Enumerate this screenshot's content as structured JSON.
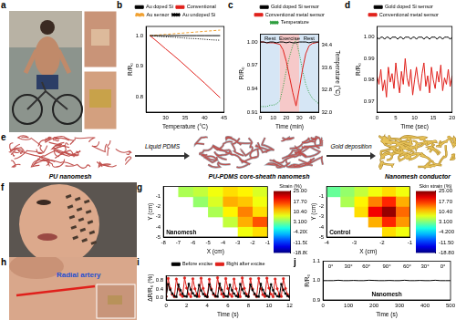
{
  "chart_data": [
    {
      "panel": "b",
      "type": "line",
      "x_label": "Temperature (°C)",
      "y_label": "R/R₀",
      "x": [
        26,
        28,
        30,
        32,
        34,
        36,
        38,
        40,
        42,
        44
      ],
      "xlim": [
        25,
        45
      ],
      "xticks": [
        30,
        35,
        40,
        45
      ],
      "ylim": [
        0.75,
        1.03
      ],
      "yticks": [
        0.8,
        0.9,
        {
          "value": 1,
          "label": "1.0"
        }
      ],
      "grid": false,
      "legend": "top",
      "series": [
        {
          "name": "Au doped Si",
          "color": "#000000",
          "line_style": "solid",
          "marker": "none",
          "values": [
            1,
            1,
            1,
            1,
            1,
            1,
            1,
            1,
            1,
            1
          ]
        },
        {
          "name": "Conventional",
          "color": "#e0201b",
          "line_style": "solid",
          "marker": "none",
          "values": [
            1,
            0.979,
            0.957,
            0.936,
            0.914,
            0.891,
            0.868,
            0.845,
            0.821,
            0.797
          ]
        },
        {
          "name": "Au sensor",
          "color": "#f0a030",
          "line_style": "dashed",
          "marker": "none",
          "values": [
            1,
            1.002,
            1.004,
            1.006,
            1.008,
            1.01,
            1.012,
            1.014,
            1.016,
            1.018
          ]
        },
        {
          "name": "Au undoped Si",
          "color": "#000000",
          "line_style": "dotted",
          "marker": "none",
          "values": [
            1,
            0.998,
            0.996,
            0.995,
            0.993,
            0.991,
            0.99,
            0.988,
            0.986,
            0.985
          ]
        }
      ]
    },
    {
      "panel": "c",
      "type": "line",
      "x_label": "Time (min)",
      "y_label": "R/R₀",
      "y2_label": "Temperature (°C)",
      "x": [
        0,
        2.5,
        5,
        7.5,
        10,
        12.5,
        15,
        17.5,
        20,
        22.5,
        25,
        27.5,
        30,
        32.5,
        35,
        37.5,
        40,
        42.5,
        45
      ],
      "xlim": [
        0,
        45
      ],
      "xticks": [
        0,
        10,
        20,
        30,
        40
      ],
      "ylim": [
        0.91,
        1.01
      ],
      "yticks": [
        0.91,
        0.94,
        0.97,
        {
          "value": 1,
          "label": "1.00"
        }
      ],
      "y2lim": [
        32,
        34.8
      ],
      "y2ticks": [
        {
          "value": 32,
          "label": "32.0"
        },
        32.8,
        33.6,
        34.4
      ],
      "grid": false,
      "legend": "top",
      "regions": [
        {
          "label": "Rest",
          "from": 0,
          "to": 15,
          "color": "#d6e6f5"
        },
        {
          "label": "Exercise",
          "from": 15,
          "to": 30,
          "color": "#f6c9c9"
        },
        {
          "label": "Rest",
          "from": 30,
          "to": 45,
          "color": "#d6e6f5"
        }
      ],
      "series": [
        {
          "name": "Gold doped Si sensor",
          "color": "#000000",
          "line_style": "solid",
          "marker": "none",
          "values": [
            1,
            1,
            0.999,
            1,
            1,
            0.999,
            1,
            1,
            0.999,
            1,
            0.999,
            0.999,
            1,
            1,
            1,
            0.999,
            1,
            1,
            1
          ]
        },
        {
          "name": "Conventional metal sensor",
          "color": "#e0201b",
          "line_style": "solid",
          "marker": "none",
          "values": [
            1,
            1,
            0.999,
            0.999,
            0.999,
            0.998,
            0.997,
            0.99,
            0.975,
            0.955,
            0.935,
            0.918,
            0.94,
            0.965,
            0.985,
            0.995,
            0.998,
            0.999,
            1
          ]
        },
        {
          "name": "Temperature",
          "color": "#2e9e3e",
          "line_style": "dotted",
          "marker": "none",
          "axis": "y2",
          "values": [
            32.2,
            32.2,
            32.2,
            32.25,
            32.25,
            32.3,
            32.4,
            32.9,
            33.5,
            34,
            34.4,
            34.6,
            34.1,
            33.5,
            33,
            32.7,
            32.5,
            32.4,
            32.3
          ]
        }
      ]
    },
    {
      "panel": "d",
      "type": "line",
      "x_label": "Time (sec)",
      "y_label": "R/R₀",
      "x": [
        0,
        0.5,
        1,
        1.5,
        2,
        2.5,
        3,
        3.5,
        4,
        4.5,
        5,
        5.5,
        6,
        6.5,
        7,
        7.5,
        8,
        8.5,
        9,
        9.5,
        10,
        10.5,
        11,
        11.5,
        12,
        12.5,
        13,
        13.5,
        14,
        14.5,
        15,
        15.5,
        16,
        16.5,
        17,
        17.5,
        18,
        18.5,
        19,
        19.5,
        20
      ],
      "xlim": [
        0,
        20
      ],
      "xticks": [
        0,
        5,
        10,
        15,
        20
      ],
      "ylim": [
        0.965,
        1.005
      ],
      "yticks": [
        0.97,
        0.98,
        0.99,
        {
          "value": 1,
          "label": "1.00"
        }
      ],
      "grid": false,
      "legend": "top",
      "series": [
        {
          "name": "Gold doped Si sensor",
          "color": "#000000",
          "line_style": "solid",
          "marker": "none",
          "values": [
            1,
            0.999,
            1,
            1,
            0.999,
            1,
            1,
            0.999,
            1,
            1,
            1,
            0.999,
            1,
            1,
            0.999,
            1,
            1,
            1,
            0.999,
            1,
            1,
            0.999,
            1,
            1,
            1,
            0.999,
            1,
            1,
            0.999,
            1,
            1,
            1,
            0.999,
            1,
            1,
            0.999,
            1,
            1,
            1,
            0.999,
            1
          ]
        },
        {
          "name": "Conventional metal sensor",
          "color": "#e0201b",
          "line_style": "solid",
          "marker": "none",
          "values": [
            0.982,
            0.978,
            0.985,
            0.975,
            0.98,
            0.972,
            0.986,
            0.979,
            0.983,
            0.976,
            0.988,
            0.98,
            0.974,
            0.984,
            0.978,
            0.99,
            0.981,
            0.977,
            0.985,
            0.973,
            0.98,
            0.986,
            0.979,
            0.975,
            0.983,
            0.988,
            0.977,
            0.982,
            0.974,
            0.986,
            0.98,
            0.976,
            0.984,
            0.979,
            0.987,
            0.975,
            0.981,
            0.978,
            0.985,
            0.977,
            0.982
          ]
        }
      ]
    },
    {
      "panel": "g",
      "type": "heatmap",
      "maps": [
        {
          "label": "Nanomesh",
          "x_label": "X (cm)",
          "y_label": "Y (cm)",
          "x": [
            -7.5,
            -6.5,
            -5.5,
            -4.5,
            -3.5,
            -2.5,
            -1.5
          ],
          "y": [
            -0.5,
            -1.5,
            -2.5,
            -3.5,
            -4.5
          ],
          "xlim": [
            -8,
            -1
          ],
          "xticks": [
            -8,
            -7,
            -6,
            -5,
            -4,
            -3,
            -2,
            -1
          ],
          "ylim": [
            -5,
            0
          ],
          "yticks": [
            -5,
            -4,
            -3,
            -2,
            -1
          ],
          "cells": [
            [
              null,
              5,
              6,
              8,
              10,
              9,
              7
            ],
            [
              null,
              null,
              4,
              7,
              12,
              11,
              8
            ],
            [
              null,
              null,
              null,
              5,
              9,
              14,
              10
            ],
            [
              null,
              null,
              null,
              null,
              6,
              12,
              16
            ],
            [
              null,
              null,
              null,
              null,
              null,
              8,
              10
            ]
          ],
          "colorbar": {
            "label": "Strain (%)",
            "range": [
              -18.8,
              25
            ],
            "ticks": [
              {
                "value": 25,
                "label": "25.00"
              },
              {
                "value": 17.7,
                "label": "17.70"
              },
              {
                "value": 10.4,
                "label": "10.40"
              },
              {
                "value": 3.1,
                "label": "3.100"
              },
              {
                "value": -4.2,
                "label": "-4.200"
              },
              {
                "value": -11.5,
                "label": "-11.50"
              },
              {
                "value": -18.8,
                "label": "-18.80"
              }
            ]
          }
        },
        {
          "label": "Control",
          "x_label": "X (cm)",
          "y_label": "Y (cm)",
          "x": [
            -3.75,
            -3.25,
            -2.75,
            -2.25,
            -1.75,
            -1.25
          ],
          "y": [
            -0.5,
            -1.5,
            -2.5,
            -3.5,
            -4.5
          ],
          "xlim": [
            -4,
            -1
          ],
          "xticks": [
            -4,
            -3,
            -2,
            -1
          ],
          "ylim": [
            -5,
            0
          ],
          "yticks": [
            -5,
            -4,
            -3,
            -2,
            -1
          ],
          "cells": [
            [
              2,
              4,
              6,
              8,
              10,
              8
            ],
            [
              null,
              5,
              9,
              14,
              18,
              12
            ],
            [
              null,
              null,
              10,
              20,
              24,
              15
            ],
            [
              null,
              null,
              null,
              12,
              18,
              13
            ],
            [
              null,
              null,
              null,
              null,
              10,
              8
            ]
          ],
          "colorbar": {
            "label": "Skin strain (%)",
            "range": [
              -18.8,
              25
            ],
            "ticks": [
              {
                "value": 25,
                "label": "25.00"
              },
              {
                "value": 17.7,
                "label": "17.70"
              },
              {
                "value": 10.4,
                "label": "10.40"
              },
              {
                "value": 3.1,
                "label": "3.100"
              },
              {
                "value": -4.2,
                "label": "-4.200"
              },
              {
                "value": -11.5,
                "label": "-11.50"
              },
              {
                "value": -18.8,
                "label": "-18.80"
              }
            ]
          }
        }
      ]
    },
    {
      "panel": "i",
      "type": "line",
      "x_label": "Time (s)",
      "y_label": "ΔR/R₀ (%)",
      "x": [
        0,
        0.2,
        0.4,
        0.6,
        0.8,
        1,
        1.2,
        1.4,
        1.6,
        1.8,
        2,
        2.2,
        2.4,
        2.6,
        2.8,
        3,
        3.2,
        3.4,
        3.6,
        3.8,
        4,
        4.2,
        4.4,
        4.6,
        4.8,
        5,
        5.2,
        5.4,
        5.6,
        5.8,
        6,
        6.2,
        6.4,
        6.6,
        6.8,
        7,
        7.2,
        7.4,
        7.6,
        7.8,
        8,
        8.2,
        8.4,
        8.6,
        8.8,
        9,
        9.2,
        9.4,
        9.6,
        9.8,
        10,
        10.2,
        10.4,
        10.6,
        10.8,
        11,
        11.2,
        11.4,
        11.6,
        11.8,
        12
      ],
      "xlim": [
        0,
        12
      ],
      "xticks": [
        0,
        2,
        4,
        6,
        8,
        10,
        12
      ],
      "ylim": [
        -0.1,
        1
      ],
      "yticks": [
        {
          "value": 0,
          "label": "0.0"
        },
        0.4,
        0.8
      ],
      "grid": false,
      "legend": "top",
      "series": [
        {
          "name": "Before excise",
          "color": "#000000",
          "line_style": "solid",
          "marker": "square",
          "values": [
            0.05,
            0.62,
            0.36,
            0.19,
            0.08,
            0.04,
            0.6,
            0.34,
            0.18,
            0.07,
            0.05,
            0.63,
            0.37,
            0.2,
            0.09,
            0.05,
            0.58,
            0.33,
            0.17,
            0.07,
            0.04,
            0.61,
            0.35,
            0.19,
            0.08,
            0.05,
            0.64,
            0.36,
            0.18,
            0.07,
            0.05,
            0.59,
            0.34,
            0.19,
            0.08,
            0.04,
            0.62,
            0.37,
            0.2,
            0.08,
            0.05,
            0.6,
            0.35,
            0.18,
            0.07,
            0.05,
            0.63,
            0.36,
            0.19,
            0.08,
            0.04,
            0.61,
            0.34,
            0.18,
            0.07,
            0.05,
            0.62,
            0.35,
            0.19,
            0.08,
            0.05
          ]
        },
        {
          "name": "Right after excise",
          "color": "#e0201b",
          "line_style": "solid",
          "marker": "circle",
          "values": [
            0.06,
            0.88,
            0.42,
            0.15,
            0.05,
            0.85,
            0.4,
            0.14,
            0.06,
            0.9,
            0.44,
            0.16,
            0.05,
            0.86,
            0.41,
            0.15,
            0.06,
            0.89,
            0.43,
            0.14,
            0.05,
            0.84,
            0.4,
            0.15,
            0.06,
            0.91,
            0.44,
            0.16,
            0.05,
            0.87,
            0.42,
            0.15,
            0.06,
            0.85,
            0.41,
            0.14,
            0.05,
            0.9,
            0.43,
            0.16,
            0.06,
            0.86,
            0.4,
            0.15,
            0.05,
            0.88,
            0.42,
            0.14,
            0.06,
            0.89,
            0.44,
            0.16,
            0.05,
            0.85,
            0.41,
            0.15,
            0.06,
            0.87,
            0.42,
            0.15,
            0.05
          ]
        }
      ]
    },
    {
      "panel": "j",
      "type": "line",
      "x_label": "Time (s)",
      "y_label": "R/R₀",
      "x": [
        0,
        20,
        40,
        60,
        80,
        100,
        120,
        140,
        160,
        180,
        200,
        220,
        240,
        260,
        280,
        300,
        320,
        340,
        360,
        380,
        400,
        420,
        440,
        460,
        480,
        500
      ],
      "xlim": [
        0,
        500
      ],
      "xticks": [
        0,
        100,
        200,
        300,
        400,
        500
      ],
      "ylim": [
        0.9,
        1.1
      ],
      "yticks": [
        0.9,
        {
          "value": 1,
          "label": "1.0"
        },
        1.1
      ],
      "grid": false,
      "color": "#000000",
      "line_style": "solid",
      "marker": "none",
      "values": [
        1,
        1,
        1,
        1.002,
        1,
        1,
        1.001,
        1,
        1,
        1.002,
        1.001,
        1,
        1,
        1.001,
        1,
        1,
        1.002,
        1,
        1,
        1.001,
        1,
        1,
        1.002,
        1,
        1,
        1
      ],
      "annotations": [
        {
          "text": "0°",
          "x": 30
        },
        {
          "text": "30°",
          "x": 100
        },
        {
          "text": "60°",
          "x": 170
        },
        {
          "text": "90°",
          "x": 250
        },
        {
          "text": "60°",
          "x": 330
        },
        {
          "text": "30°",
          "x": 400
        },
        {
          "text": "0°",
          "x": 470
        }
      ],
      "inset_label": "Nanomesh"
    }
  ],
  "photos": [
    {
      "panel": "a"
    },
    {
      "panel": "f"
    },
    {
      "panel": "h",
      "labels": [
        "Radial artery"
      ]
    }
  ],
  "diagram": {
    "panel": "e",
    "stages": [
      "PU nanomesh",
      "PU-PDMS core-sheath nanomesh",
      "Nanomesh conductor"
    ],
    "steps": [
      "Liquid PDMS",
      "Gold deposition"
    ]
  }
}
